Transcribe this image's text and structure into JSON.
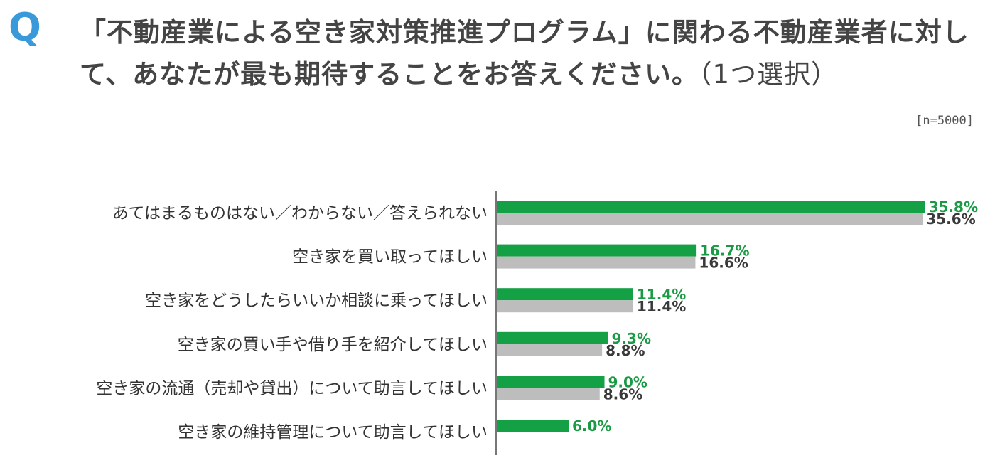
{
  "header": {
    "q_mark": "Q",
    "question_main": "「不動産業による空き家対策推進プログラム」に関わる不動産業者に対して、あなたが最も期待することをお答えください。",
    "question_sub": "（1つ選択）",
    "sample_size": "[n=5000]"
  },
  "chart_data": {
    "type": "bar",
    "orientation": "horizontal",
    "categories": [
      "あてはまるものはない／わからない／答えられない",
      "空き家を買い取ってほしい",
      "空き家をどうしたらいいか相談に乗ってほしい",
      "空き家の買い手や借り手を紹介してほしい",
      "空き家の流通（売却や貸出）について助言してほしい",
      "空き家の維持管理について助言してほしい"
    ],
    "series": [
      {
        "color": "#14a044",
        "values": [
          35.8,
          16.7,
          11.4,
          9.3,
          9.0,
          6.0
        ],
        "labels": [
          "35.8%",
          "16.7%",
          "11.4%",
          "9.3%",
          "9.0%",
          "6.0%"
        ]
      },
      {
        "color": "#bdbdbd",
        "values": [
          35.6,
          16.6,
          11.4,
          8.8,
          8.6,
          null
        ],
        "labels": [
          "35.6%",
          "16.6%",
          "11.4%",
          "8.8%",
          "8.6%",
          null
        ]
      }
    ],
    "xlim": [
      0,
      36
    ],
    "title": "",
    "xlabel": "",
    "ylabel": "",
    "grid": false,
    "legend": "none"
  }
}
